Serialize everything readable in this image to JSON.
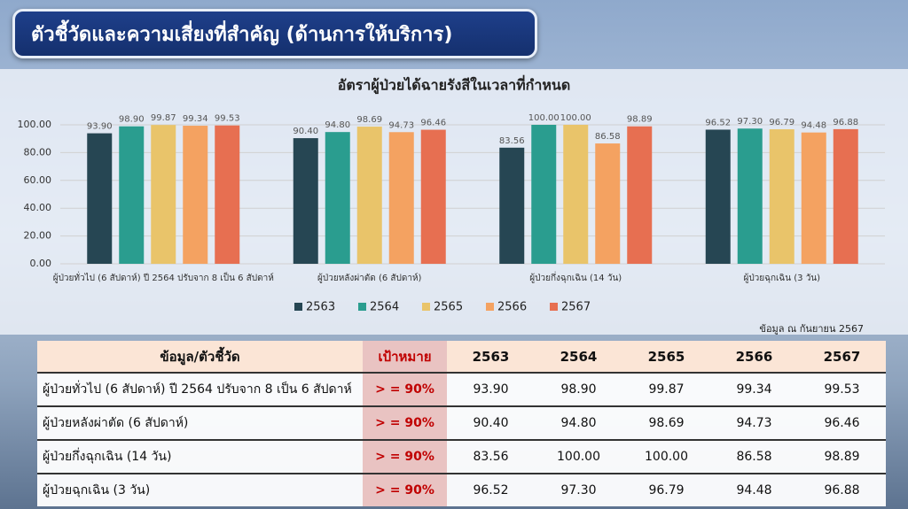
{
  "header": {
    "title": "ตัวชี้วัดและความเสี่ยงที่สำคัญ (ด้านการให้บริการ)"
  },
  "chart_data": {
    "type": "bar",
    "title": "อัตราผู้ป่วยได้ฉายรังสีในเวลาที่กำหนด",
    "categories": [
      "ผู้ป่วยทั่วไป (6 สัปดาห์) ปี 2564 ปรับจาก 8 เป็น 6 สัปดาห์",
      "ผู้ป่วยหลังผ่าตัด (6 สัปดาห์)",
      "ผู้ป่วยกึ่งฉุกเฉิน (14 วัน)",
      "ผู้ป่วยฉุกเฉิน (3 วัน)"
    ],
    "series": [
      {
        "name": "2563",
        "color": "#264653",
        "values": [
          93.9,
          90.4,
          83.56,
          96.52
        ],
        "value_labels": [
          "93.90",
          "90.40",
          "83.56",
          "96.52"
        ]
      },
      {
        "name": "2564",
        "color": "#2a9d8f",
        "values": [
          98.9,
          94.8,
          100,
          97.3
        ],
        "value_labels": [
          "98.90",
          "94.80",
          "100.00",
          "97.30"
        ]
      },
      {
        "name": "2565",
        "color": "#e9c46a",
        "values": [
          99.87,
          98.69,
          100,
          96.79
        ],
        "value_labels": [
          "99.87",
          "98.69",
          "100.00",
          "96.79"
        ]
      },
      {
        "name": "2566",
        "color": "#f4a261",
        "values": [
          99.34,
          94.73,
          86.58,
          94.48
        ],
        "value_labels": [
          "99.34",
          "94.73",
          "86.58",
          "94.48"
        ]
      },
      {
        "name": "2567",
        "color": "#e76f51",
        "values": [
          99.53,
          96.46,
          98.89,
          96.88
        ],
        "value_labels": [
          "99.53",
          "96.46",
          "98.89",
          "96.88"
        ]
      }
    ],
    "ylim": [
      0,
      100
    ],
    "yticks": [
      {
        "value": 0,
        "label": "0.00"
      },
      {
        "value": 20,
        "label": "20.00"
      },
      {
        "value": 40,
        "label": "40.00"
      },
      {
        "value": 60,
        "label": "60.00"
      },
      {
        "value": 80,
        "label": "80.00"
      },
      {
        "value": 100,
        "label": "100.00"
      }
    ],
    "grid": true,
    "legend": "bottom"
  },
  "note": "ข้อมูล ณ กันยายน 2567",
  "table": {
    "headers": [
      "ข้อมูล/ตัวชี้วัด",
      "เป้าหมาย",
      "2563",
      "2564",
      "2565",
      "2566",
      "2567"
    ],
    "rows": [
      [
        "ผู้ป่วยทั่วไป (6 สัปดาห์) ปี 2564 ปรับจาก 8 เป็น 6 สัปดาห์",
        "> = 90%",
        "93.90",
        "98.90",
        "99.87",
        "99.34",
        "99.53"
      ],
      [
        "ผู้ป่วยหลังผ่าตัด (6 สัปดาห์)",
        "> = 90%",
        "90.40",
        "94.80",
        "98.69",
        "94.73",
        "96.46"
      ],
      [
        "ผู้ป่วยกึ่งฉุกเฉิน (14 วัน)",
        "> = 90%",
        "83.56",
        "100.00",
        "100.00",
        "86.58",
        "98.89"
      ],
      [
        "ผู้ป่วยฉุกเฉิน (3 วัน)",
        "> = 90%",
        "96.52",
        "97.30",
        "96.79",
        "94.48",
        "96.88"
      ]
    ]
  }
}
